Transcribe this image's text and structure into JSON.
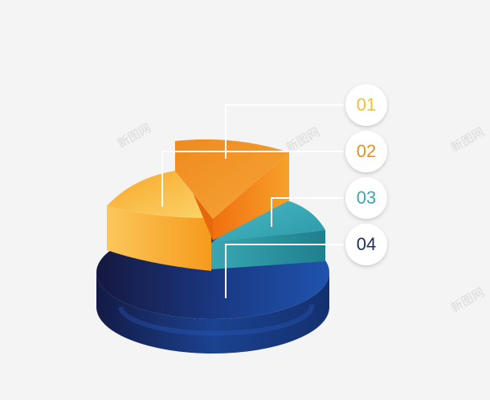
{
  "chart_data": {
    "type": "pie",
    "style": "3d-exploded-stacked",
    "categories": [
      "01",
      "02",
      "03",
      "04"
    ],
    "values": [
      12,
      22,
      14,
      52
    ],
    "colors": [
      "#f07a10",
      "#f6b02a",
      "#3aa6b3",
      "#1c3f8c"
    ],
    "label_colors": [
      "#f0c030",
      "#e8901a",
      "#3aa6b3",
      "#1c2f5c"
    ],
    "legend": "right",
    "title": "",
    "xlabel": "",
    "ylabel": ""
  },
  "labels": [
    {
      "text": "01",
      "color": "#f0c030"
    },
    {
      "text": "02",
      "color": "#e8901a"
    },
    {
      "text": "03",
      "color": "#3aa6b3"
    },
    {
      "text": "04",
      "color": "#1c2f5c"
    }
  ],
  "watermark": {
    "text": "新图网",
    "color": "#d8d8d8"
  }
}
